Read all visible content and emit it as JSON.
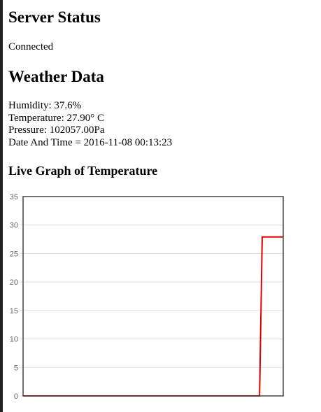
{
  "server": {
    "title": "Server Status",
    "status": "Connected"
  },
  "weather": {
    "title": "Weather Data",
    "humidity": "Humidity: 37.6%",
    "temperature": "Temperature: 27.90° C",
    "pressure": "Pressure: 102057.00Pa",
    "datetime": "Date And Time = 2016-11-08 00:13:23"
  },
  "graph": {
    "title": "Live Graph of Temperature"
  },
  "chart_data": {
    "type": "line",
    "title": "",
    "xlabel": "",
    "ylabel": "",
    "ylim": [
      0,
      35
    ],
    "yticks": [
      0,
      5,
      10,
      15,
      20,
      25,
      30,
      35
    ],
    "grid": true,
    "series": [
      {
        "color": "#e00000",
        "values": [
          0,
          0,
          0,
          0,
          0,
          0,
          0,
          0,
          0,
          0,
          0,
          0,
          0,
          0,
          0,
          0,
          0,
          0,
          0,
          0,
          0,
          0,
          0,
          0,
          0,
          0,
          0,
          0,
          0,
          0,
          0,
          0,
          0,
          0,
          0,
          0,
          0,
          0,
          0,
          0,
          0,
          0,
          0,
          0,
          0,
          0,
          0,
          0,
          0,
          0,
          0,
          0,
          0,
          0,
          0,
          0,
          0,
          0,
          0,
          0,
          0,
          0,
          0,
          0,
          0,
          0,
          0,
          0,
          0,
          0,
          0,
          0,
          0,
          0,
          0,
          0,
          0,
          0,
          0,
          0,
          0,
          0,
          0,
          0,
          0,
          0,
          0,
          0,
          0,
          0,
          0,
          27.9,
          27.9,
          27.9,
          27.9,
          27.9,
          27.9,
          27.9,
          27.9,
          27.9
        ]
      }
    ]
  }
}
